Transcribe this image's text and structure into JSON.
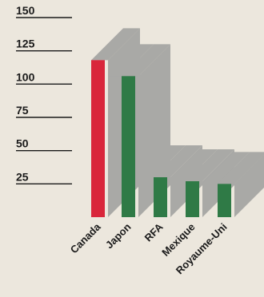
{
  "chart_data": {
    "type": "bar",
    "categories": [
      "Canada",
      "Japon",
      "RFA",
      "Mexique",
      "Royaume-Uni"
    ],
    "values": [
      118,
      106,
      30,
      27,
      25
    ],
    "yticks": [
      25,
      50,
      75,
      100,
      125,
      150
    ],
    "ylim": [
      0,
      150
    ],
    "grid": false,
    "colors": {
      "bars": [
        "#d9263b",
        "#2f7a46",
        "#2f7a46",
        "#2f7a46",
        "#2f7a46"
      ],
      "shadow": "#a9a9a6",
      "background": "#ece7dd"
    }
  }
}
